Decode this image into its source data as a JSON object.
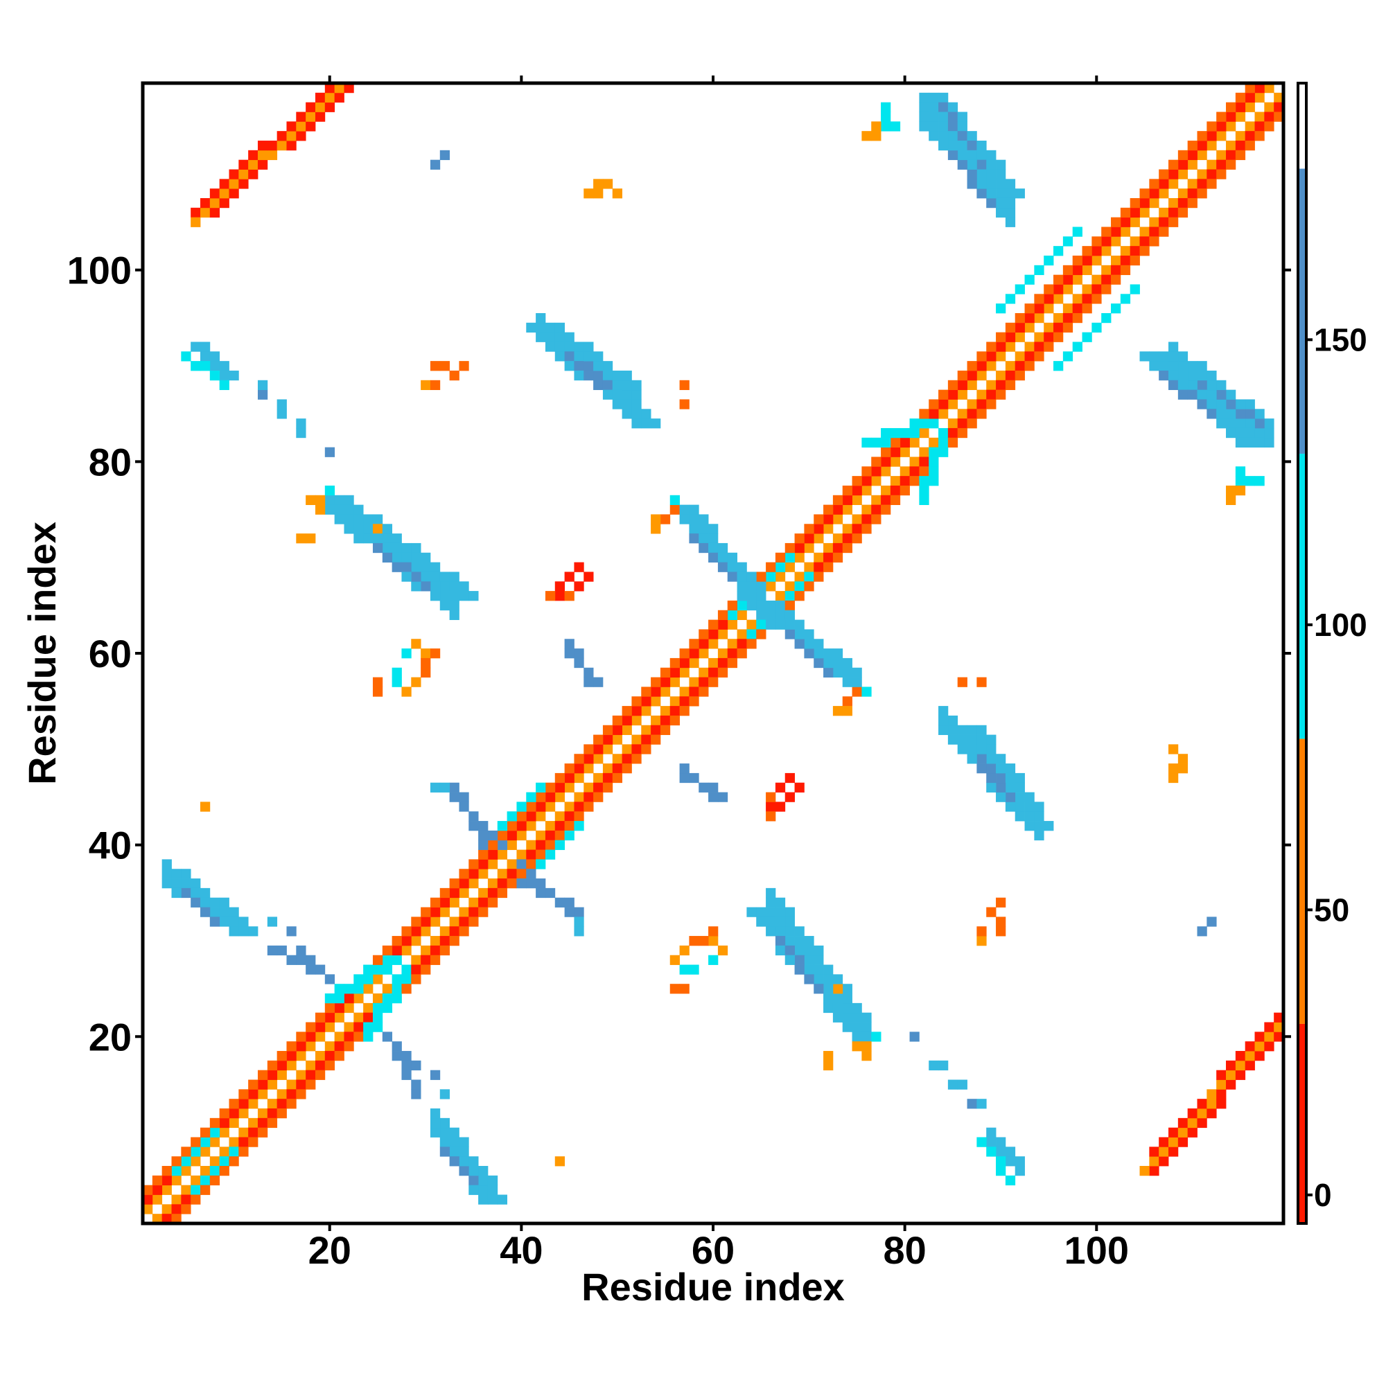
{
  "chart_data": {
    "type": "heatmap",
    "title": "",
    "xlabel": "Residue index",
    "ylabel": "Residue index",
    "xlim": [
      0.5,
      119.5
    ],
    "ylim": [
      0.5,
      119.5
    ],
    "x_ticks": [
      20,
      40,
      60,
      80,
      100
    ],
    "y_ticks": [
      20,
      40,
      60,
      80,
      100
    ],
    "x_tick_labels": [
      "20",
      "40",
      "60",
      "80",
      "100"
    ],
    "y_tick_labels": [
      "20",
      "40",
      "60",
      "80",
      "100"
    ],
    "grid": false,
    "symmetric": true,
    "colorbar": {
      "range": [
        -5,
        195
      ],
      "ticks": [
        0,
        50,
        100,
        150
      ],
      "tick_labels": [
        "0",
        "50",
        "100",
        "150"
      ],
      "bins": [
        {
          "from": -5,
          "to": 30,
          "color": "#ff1a00"
        },
        {
          "from": 30,
          "to": 80,
          "color": "#ff7f00"
        },
        {
          "from": 80,
          "to": 130,
          "color": "#00e5ee"
        },
        {
          "from": 130,
          "to": 180,
          "color": "#4f8fc8"
        },
        {
          "from": 180,
          "to": 195,
          "color": "#ffffff"
        }
      ]
    },
    "colors": {
      "red": "#ff1a00",
      "dark_orange": "#ff6600",
      "orange": "#ff9900",
      "cyan": "#00e5ee",
      "light_blue": "#35b9e0",
      "steel_blue": "#4f8fc8"
    },
    "bands": [
      {
        "note": "main diagonal i-(i+1)",
        "from": [
          1,
          2
        ],
        "to": [
          118,
          119
        ],
        "width": 1,
        "color": "orange"
      },
      {
        "note": "main diagonal i-(i+2)",
        "from": [
          1,
          3
        ],
        "to": [
          117,
          119
        ],
        "width": 1,
        "color": "red"
      },
      {
        "note": "main diagonal i-(i+3)",
        "from": [
          1,
          4
        ],
        "to": [
          116,
          119
        ],
        "width": 1,
        "color": "dark_orange"
      },
      {
        "note": "main diagonal i-(i+4) near 40s",
        "from": [
          38,
          42
        ],
        "to": [
          42,
          46
        ],
        "width": 1,
        "color": "cyan"
      },
      {
        "from": [
          62,
          64
        ],
        "to": [
          68,
          70
        ],
        "width": 1,
        "color": "cyan"
      },
      {
        "from": [
          76,
          82
        ],
        "to": [
          82,
          84
        ],
        "width": 2,
        "color": "cyan"
      },
      {
        "from": [
          90,
          96
        ],
        "to": [
          98,
          104
        ],
        "width": 1,
        "color": "cyan"
      },
      {
        "from": [
          20,
          24
        ],
        "to": [
          26,
          28
        ],
        "width": 2,
        "color": "cyan"
      },
      {
        "from": [
          4,
          6
        ],
        "to": [
          8,
          10
        ],
        "width": 1,
        "color": "cyan"
      },
      {
        "from": [
          6,
          106
        ],
        "to": [
          20,
          119
        ],
        "width": 3,
        "color": "red"
      },
      {
        "from": [
          6,
          105
        ],
        "to": [
          21,
          119
        ],
        "width": 1,
        "color": "orange"
      },
      {
        "from": [
          4,
          36
        ],
        "to": [
          10,
          31
        ],
        "width": 3,
        "color": "light_blue"
      },
      {
        "from": [
          17,
          29
        ],
        "to": [
          20,
          26
        ],
        "width": 1,
        "color": "steel_blue"
      },
      {
        "from": [
          6,
          92
        ],
        "to": [
          9,
          89
        ],
        "width": 2,
        "color": "light_blue"
      },
      {
        "from": [
          20,
          76
        ],
        "to": [
          33,
          66
        ],
        "width": 3,
        "color": "light_blue"
      },
      {
        "from": [
          24,
          72
        ],
        "to": [
          30,
          68
        ],
        "width": 1,
        "color": "steel_blue"
      },
      {
        "from": [
          41,
          94
        ],
        "to": [
          52,
          84
        ],
        "width": 3,
        "color": "light_blue"
      },
      {
        "from": [
          44,
          92
        ],
        "to": [
          48,
          88
        ],
        "width": 1,
        "color": "steel_blue"
      },
      {
        "from": [
          56,
          75
        ],
        "to": [
          65,
          64
        ],
        "width": 3,
        "color": "light_blue"
      },
      {
        "from": [
          58,
          72
        ],
        "to": [
          62,
          68
        ],
        "width": 1,
        "color": "steel_blue"
      },
      {
        "from": [
          82,
          118
        ],
        "to": [
          90,
          108
        ],
        "width": 3,
        "color": "light_blue"
      },
      {
        "from": [
          84,
          117
        ],
        "to": [
          88,
          111
        ],
        "width": 1,
        "color": "steel_blue"
      },
      {
        "from": [
          105,
          91
        ],
        "to": [
          115,
          82
        ],
        "width": 3,
        "color": "light_blue"
      },
      {
        "from": [
          107,
          89
        ],
        "to": [
          112,
          85
        ],
        "width": 1,
        "color": "steel_blue"
      },
      {
        "from": [
          86,
          52
        ],
        "to": [
          93,
          42
        ],
        "width": 3,
        "color": "light_blue"
      },
      {
        "from": [
          88,
          49
        ],
        "to": [
          91,
          45
        ],
        "width": 1,
        "color": "steel_blue"
      },
      {
        "from": [
          64,
          33
        ],
        "to": [
          75,
          20
        ],
        "width": 3,
        "color": "light_blue"
      },
      {
        "from": [
          67,
          30
        ],
        "to": [
          71,
          25
        ],
        "width": 1,
        "color": "steel_blue"
      },
      {
        "from": [
          31,
          10
        ],
        "to": [
          36,
          3
        ],
        "width": 3,
        "color": "light_blue"
      },
      {
        "from": [
          32,
          8
        ],
        "to": [
          35,
          5
        ],
        "width": 1,
        "color": "steel_blue"
      },
      {
        "from": [
          33,
          45
        ],
        "to": [
          38,
          40
        ],
        "width": 1,
        "color": "steel_blue"
      },
      {
        "from": [
          40,
          36
        ],
        "to": [
          46,
          33
        ],
        "width": 1,
        "color": "steel_blue"
      },
      {
        "from": [
          45,
          61
        ],
        "to": [
          47,
          57
        ],
        "width": 1,
        "color": "steel_blue"
      },
      {
        "from": [
          57,
          48
        ],
        "to": [
          60,
          45
        ],
        "width": 1,
        "color": "steel_blue"
      },
      {
        "from": [
          27,
          18
        ],
        "to": [
          29,
          14
        ],
        "width": 1,
        "color": "steel_blue"
      },
      {
        "from": [
          88,
          9
        ],
        "to": [
          91,
          5
        ],
        "width": 1,
        "color": "cyan"
      }
    ],
    "points": [
      {
        "x": 13,
        "y": 87,
        "color": "steel_blue"
      },
      {
        "x": 15,
        "y": 85,
        "color": "light_blue"
      },
      {
        "x": 17,
        "y": 83,
        "color": "light_blue"
      },
      {
        "x": 20,
        "y": 81,
        "color": "steel_blue"
      },
      {
        "x": 32,
        "y": 112,
        "color": "steel_blue"
      },
      {
        "x": 16,
        "y": 31,
        "color": "steel_blue"
      },
      {
        "x": 32,
        "y": 14,
        "color": "light_blue"
      },
      {
        "x": 46,
        "y": 31,
        "color": "light_blue"
      },
      {
        "x": 111,
        "y": 31,
        "color": "steel_blue"
      },
      {
        "x": 81,
        "y": 20,
        "color": "steel_blue"
      },
      {
        "x": 84,
        "y": 17,
        "color": "light_blue"
      },
      {
        "x": 86,
        "y": 15,
        "color": "light_blue"
      },
      {
        "x": 88,
        "y": 13,
        "color": "light_blue"
      },
      {
        "x": 32,
        "y": 46,
        "color": "light_blue"
      },
      {
        "x": 18,
        "y": 76,
        "color": "orange"
      },
      {
        "x": 19,
        "y": 75,
        "color": "orange"
      },
      {
        "x": 17,
        "y": 72,
        "color": "orange"
      },
      {
        "x": 25,
        "y": 73,
        "color": "orange"
      },
      {
        "x": 27,
        "y": 58,
        "color": "orange"
      },
      {
        "x": 27,
        "y": 57,
        "color": "orange"
      },
      {
        "x": 29,
        "y": 61,
        "color": "orange"
      },
      {
        "x": 30,
        "y": 60,
        "color": "orange"
      },
      {
        "x": 28,
        "y": 60,
        "color": "cyan"
      },
      {
        "x": 29,
        "y": 57,
        "color": "orange"
      },
      {
        "x": 7,
        "y": 44,
        "color": "orange"
      },
      {
        "x": 30,
        "y": 88,
        "color": "orange"
      },
      {
        "x": 31,
        "y": 90,
        "color": "dark_orange"
      },
      {
        "x": 32,
        "y": 90,
        "color": "dark_orange"
      },
      {
        "x": 33,
        "y": 89,
        "color": "dark_orange"
      },
      {
        "x": 34,
        "y": 90,
        "color": "dark_orange"
      },
      {
        "x": 47,
        "y": 108,
        "color": "dark_orange"
      },
      {
        "x": 48,
        "y": 108,
        "color": "orange"
      },
      {
        "x": 49,
        "y": 109,
        "color": "orange"
      },
      {
        "x": 50,
        "y": 108,
        "color": "orange"
      },
      {
        "x": 44,
        "y": 67,
        "color": "red"
      },
      {
        "x": 45,
        "y": 68,
        "color": "red"
      },
      {
        "x": 46,
        "y": 69,
        "color": "red"
      },
      {
        "x": 47,
        "y": 68,
        "color": "red"
      },
      {
        "x": 44,
        "y": 66,
        "color": "dark_orange"
      },
      {
        "x": 45,
        "y": 66,
        "color": "dark_orange"
      },
      {
        "x": 44,
        "y": 7,
        "color": "orange"
      },
      {
        "x": 57,
        "y": 86,
        "color": "dark_orange"
      },
      {
        "x": 55,
        "y": 74,
        "color": "dark_orange"
      },
      {
        "x": 56,
        "y": 75,
        "color": "dark_orange"
      },
      {
        "x": 54,
        "y": 73,
        "color": "orange"
      },
      {
        "x": 56,
        "y": 76,
        "color": "cyan"
      },
      {
        "x": 56,
        "y": 28,
        "color": "orange"
      },
      {
        "x": 57,
        "y": 27,
        "color": "cyan"
      },
      {
        "x": 58,
        "y": 27,
        "color": "cyan"
      },
      {
        "x": 56,
        "y": 25,
        "color": "dark_orange"
      },
      {
        "x": 57,
        "y": 25,
        "color": "dark_orange"
      },
      {
        "x": 58,
        "y": 30,
        "color": "dark_orange"
      },
      {
        "x": 59,
        "y": 30,
        "color": "dark_orange"
      },
      {
        "x": 60,
        "y": 31,
        "color": "dark_orange"
      },
      {
        "x": 66,
        "y": 44,
        "color": "red"
      },
      {
        "x": 67,
        "y": 46,
        "color": "red"
      },
      {
        "x": 68,
        "y": 45,
        "color": "red"
      },
      {
        "x": 68,
        "y": 47,
        "color": "red"
      },
      {
        "x": 69,
        "y": 46,
        "color": "red"
      },
      {
        "x": 66,
        "y": 43,
        "color": "dark_orange"
      },
      {
        "x": 72,
        "y": 18,
        "color": "orange"
      },
      {
        "x": 74,
        "y": 54,
        "color": "orange"
      },
      {
        "x": 76,
        "y": 56,
        "color": "cyan"
      },
      {
        "x": 76,
        "y": 19,
        "color": "orange"
      },
      {
        "x": 77,
        "y": 20,
        "color": "cyan"
      },
      {
        "x": 76,
        "y": 114,
        "color": "orange"
      },
      {
        "x": 77,
        "y": 114,
        "color": "orange"
      },
      {
        "x": 78,
        "y": 115,
        "color": "cyan"
      },
      {
        "x": 78,
        "y": 116,
        "color": "cyan"
      },
      {
        "x": 79,
        "y": 115,
        "color": "cyan"
      },
      {
        "x": 88,
        "y": 57,
        "color": "dark_orange"
      },
      {
        "x": 88,
        "y": 31,
        "color": "dark_orange"
      },
      {
        "x": 89,
        "y": 33,
        "color": "dark_orange"
      },
      {
        "x": 90,
        "y": 34,
        "color": "dark_orange"
      },
      {
        "x": 90,
        "y": 32,
        "color": "dark_orange"
      },
      {
        "x": 108,
        "y": 48,
        "color": "orange"
      },
      {
        "x": 108,
        "y": 47,
        "color": "orange"
      },
      {
        "x": 109,
        "y": 48,
        "color": "orange"
      },
      {
        "x": 115,
        "y": 77,
        "color": "orange"
      },
      {
        "x": 115,
        "y": 78,
        "color": "cyan"
      },
      {
        "x": 116,
        "y": 78,
        "color": "cyan"
      },
      {
        "x": 117,
        "y": 78,
        "color": "cyan"
      }
    ]
  }
}
